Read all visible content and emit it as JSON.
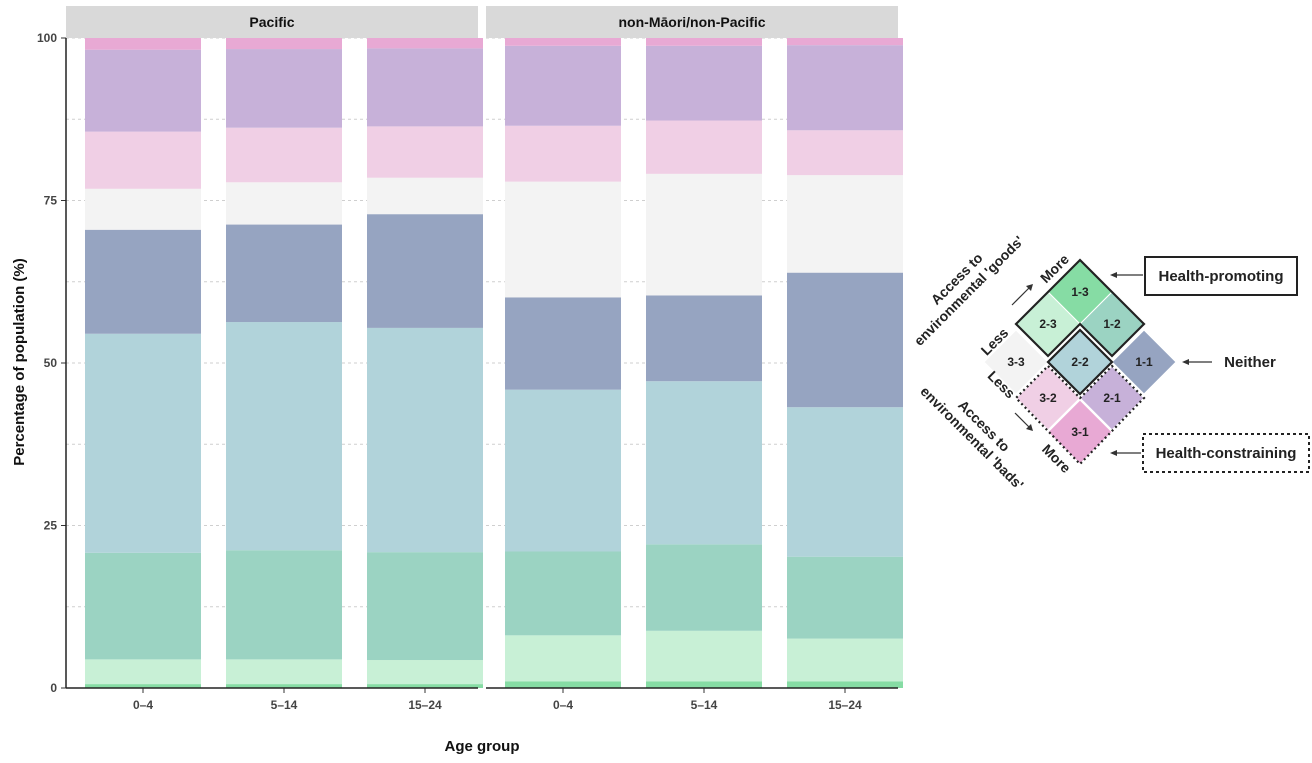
{
  "chart_data": {
    "type": "bar",
    "stacked": true,
    "ylabel": "Percentage of population (%)",
    "xlabel": "Age group",
    "ylim": [
      0,
      100
    ],
    "yticks": [
      0,
      25,
      50,
      75,
      100
    ],
    "grid": true,
    "categories": [
      "0–4",
      "5–14",
      "15–24"
    ],
    "stack_order": [
      "1-3",
      "2-3",
      "1-2",
      "2-2",
      "1-1",
      "3-3",
      "3-2",
      "2-1",
      "3-1"
    ],
    "colors": {
      "1-3": "#86dca4",
      "2-3": "#c8f0d6",
      "1-2": "#9bd3c2",
      "2-2": "#b1d3da",
      "1-1": "#96a4c1",
      "3-3": "#f3f3f3",
      "3-2": "#f0cfe5",
      "2-1": "#c7b1d9",
      "3-1": "#e8a9d4"
    },
    "panels": [
      {
        "strip": "Pacific",
        "bars": [
          {
            "category": "0–4",
            "values": {
              "1-3": 0.6,
              "1-2": 16.4,
              "2-3": 3.8,
              "1-1": 16.0,
              "2-2": 33.7,
              "3-3": 6.3,
              "3-2": 8.8,
              "2-1": 12.6,
              "3-1": 1.8
            }
          },
          {
            "category": "5–14",
            "values": {
              "1-3": 0.6,
              "1-2": 16.8,
              "2-3": 3.8,
              "1-1": 15.0,
              "2-2": 35.1,
              "3-3": 6.5,
              "3-2": 8.4,
              "2-1": 12.1,
              "3-1": 1.7
            }
          },
          {
            "category": "15–24",
            "values": {
              "1-3": 0.6,
              "1-2": 16.6,
              "2-3": 3.7,
              "1-1": 17.5,
              "2-2": 34.5,
              "3-3": 5.6,
              "3-2": 7.9,
              "2-1": 12.0,
              "3-1": 1.6
            }
          }
        ]
      },
      {
        "strip": "non-Māori/non-Pacific",
        "bars": [
          {
            "category": "0–4",
            "values": {
              "1-3": 1.0,
              "1-2": 12.9,
              "2-3": 7.1,
              "1-1": 14.2,
              "2-2": 24.9,
              "3-3": 17.8,
              "3-2": 8.6,
              "2-1": 12.3,
              "3-1": 1.2
            }
          },
          {
            "category": "5–14",
            "values": {
              "1-3": 1.0,
              "1-2": 13.3,
              "2-3": 7.8,
              "1-1": 13.2,
              "2-2": 25.1,
              "3-3": 18.7,
              "3-2": 8.2,
              "2-1": 11.5,
              "3-1": 1.2
            }
          },
          {
            "category": "15–24",
            "values": {
              "1-3": 1.0,
              "1-2": 12.6,
              "2-3": 6.6,
              "1-1": 20.7,
              "2-2": 23.0,
              "3-3": 15.0,
              "3-2": 6.9,
              "2-1": 13.1,
              "3-1": 1.1
            }
          }
        ]
      }
    ],
    "legend": {
      "placement": "right",
      "cells": [
        "1-3",
        "2-3",
        "1-2",
        "3-3",
        "2-2",
        "1-1",
        "3-2",
        "2-1",
        "3-1"
      ],
      "goods_axis_title": [
        "Access to",
        "environmental 'goods'"
      ],
      "goods_less": "Less",
      "goods_more": "More",
      "bads_axis_title": [
        "Access to",
        "environmental 'bads'"
      ],
      "bads_less": "Less",
      "bads_more": "More",
      "callouts": {
        "promoting": "Health-promoting",
        "neither": "Neither",
        "constraining": "Health-constraining"
      }
    }
  }
}
